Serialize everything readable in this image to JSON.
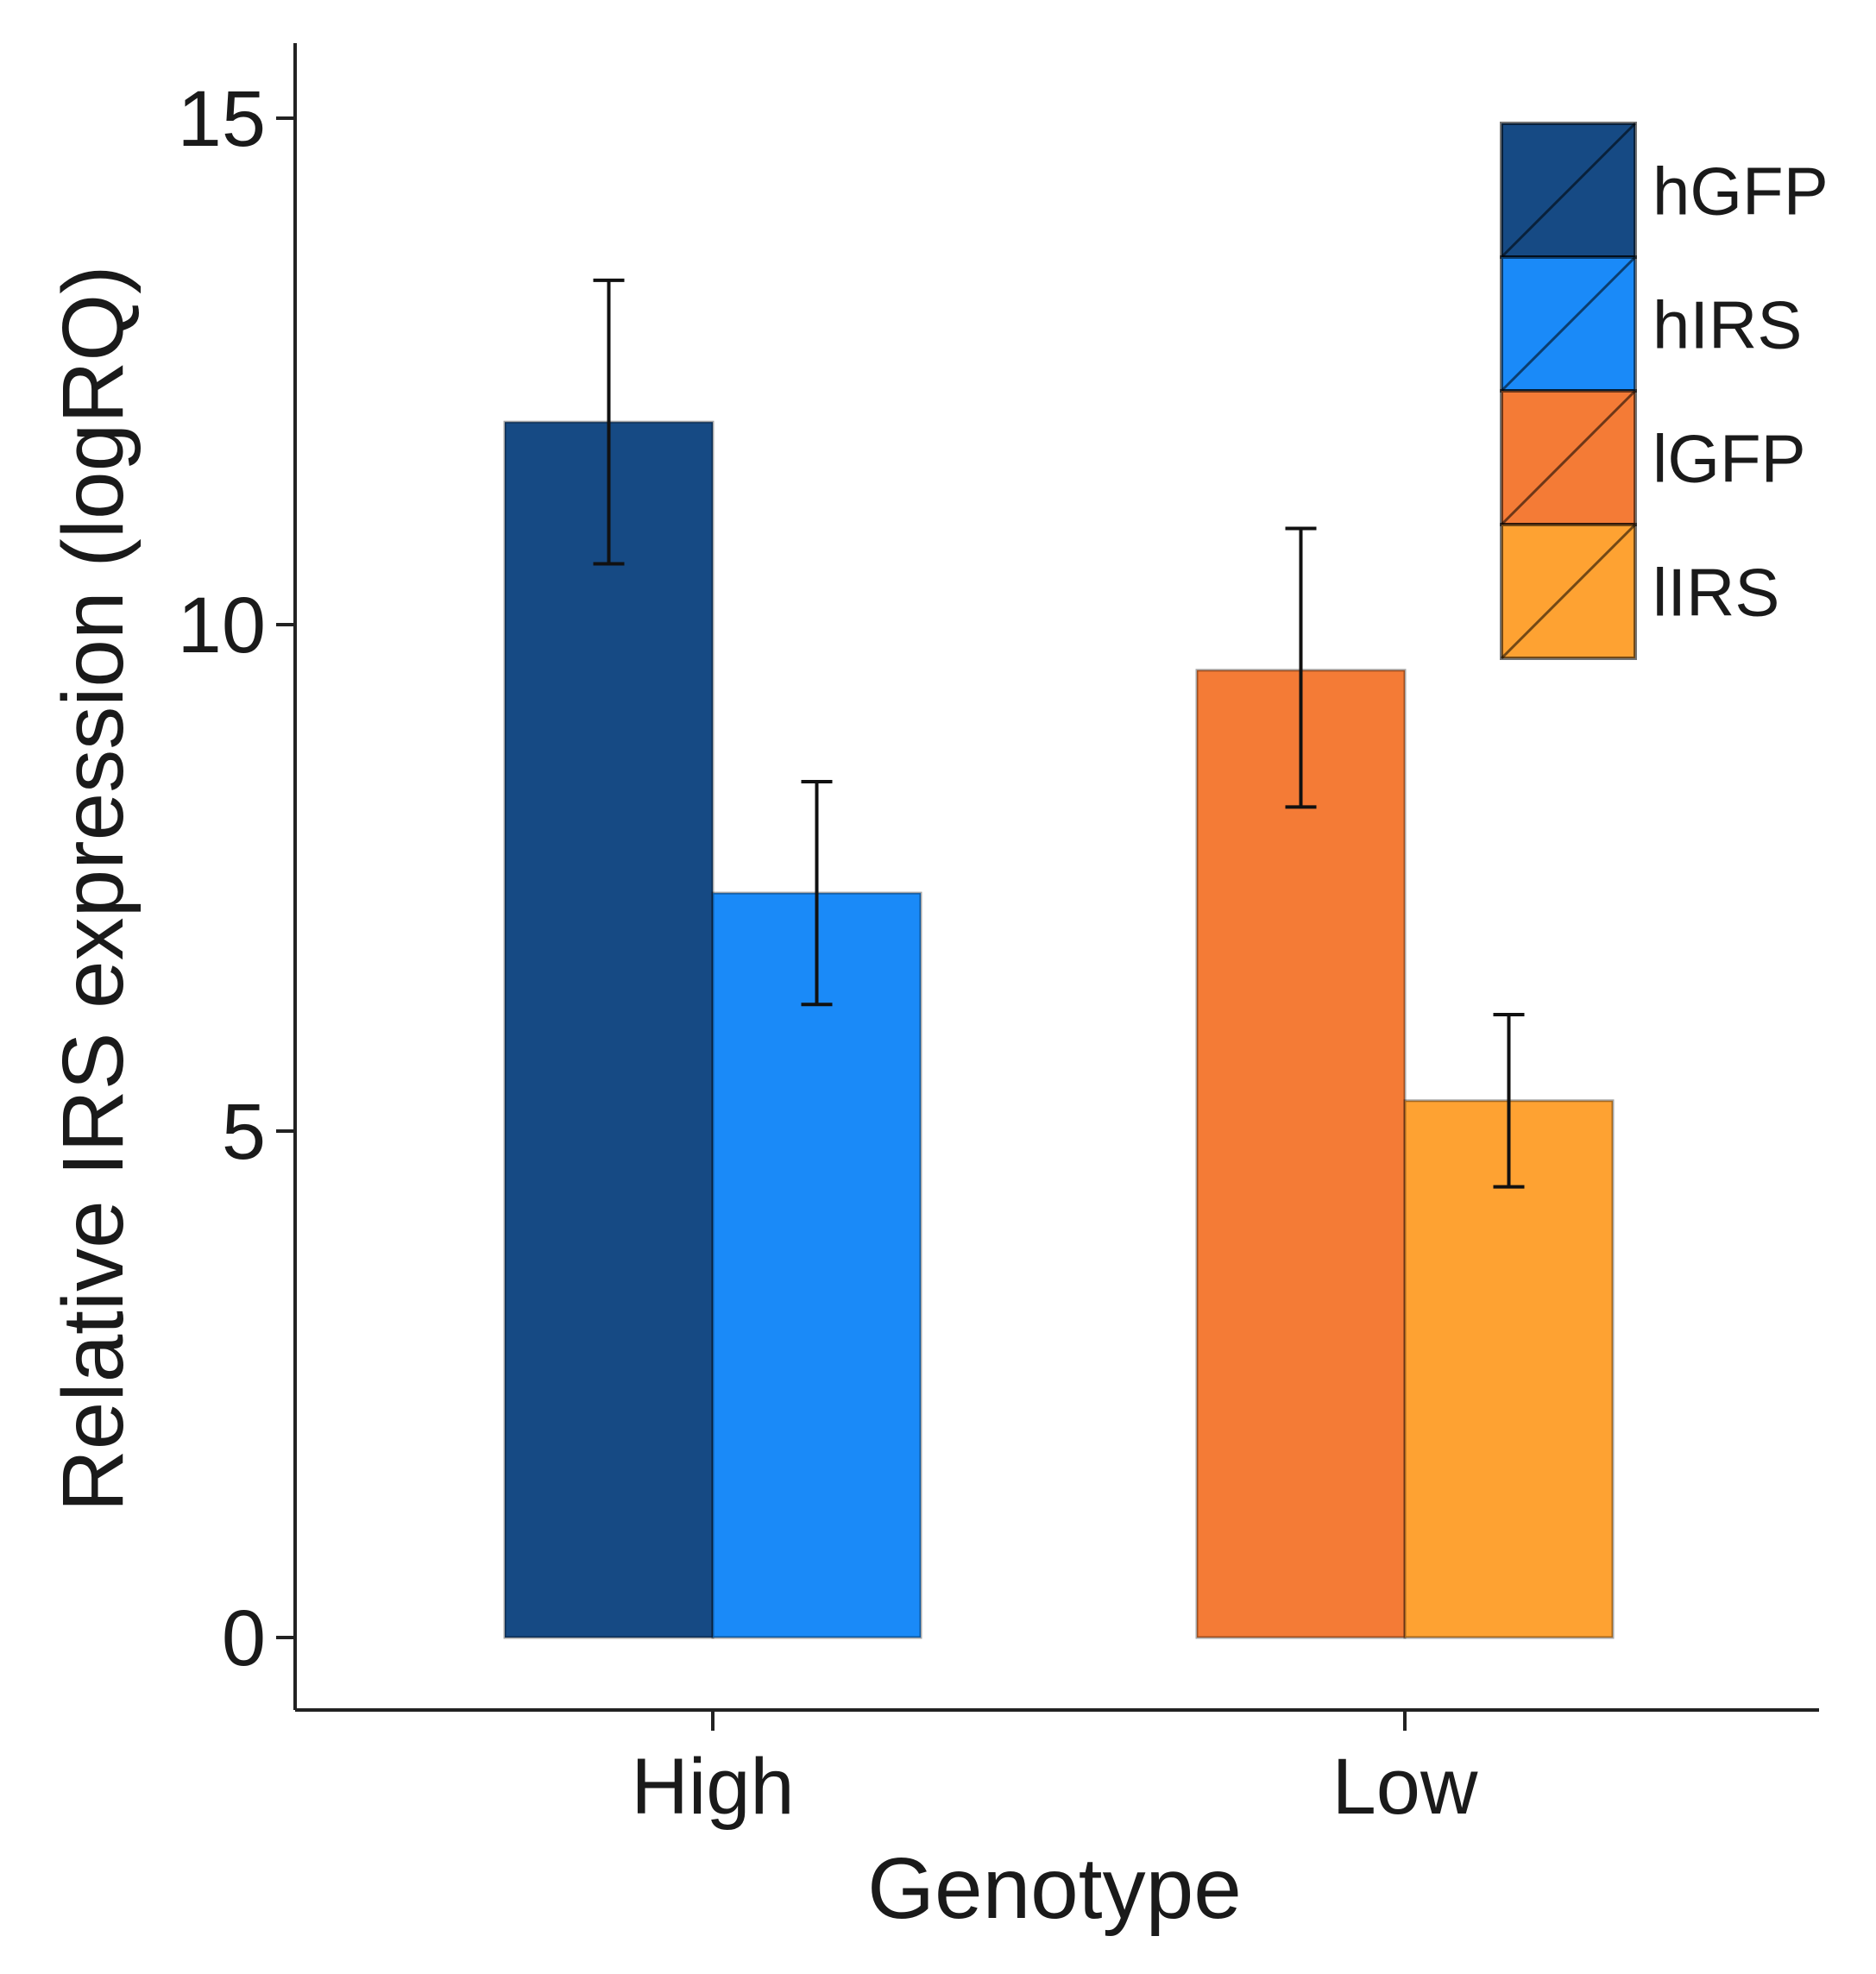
{
  "chart_data": {
    "type": "bar",
    "xlabel": "Genotype",
    "ylabel": "Relative IRS expression (logRQ)",
    "ylim": [
      -0.75,
      16.5
    ],
    "yticks": [
      0,
      5,
      10,
      15
    ],
    "categories": [
      "High",
      "Low"
    ],
    "series": [
      {
        "name": "hGFP",
        "color": "#164a84",
        "values": [
          12.0,
          null
        ],
        "error": [
          [
            10.6,
            13.4
          ],
          null
        ]
      },
      {
        "name": "hIRS",
        "color": "#1a8af8",
        "values": [
          7.35,
          null
        ],
        "error": [
          [
            6.25,
            8.45
          ],
          null
        ]
      },
      {
        "name": "lGFP",
        "color": "#f47b36",
        "values": [
          null,
          9.55
        ],
        "error": [
          null,
          [
            8.2,
            10.95
          ]
        ]
      },
      {
        "name": "lIRS",
        "color": "#fea232",
        "values": [
          null,
          5.3
        ],
        "error": [
          null,
          [
            4.45,
            6.15
          ]
        ]
      }
    ],
    "legend": {
      "position": "top-right"
    },
    "grid": false
  }
}
